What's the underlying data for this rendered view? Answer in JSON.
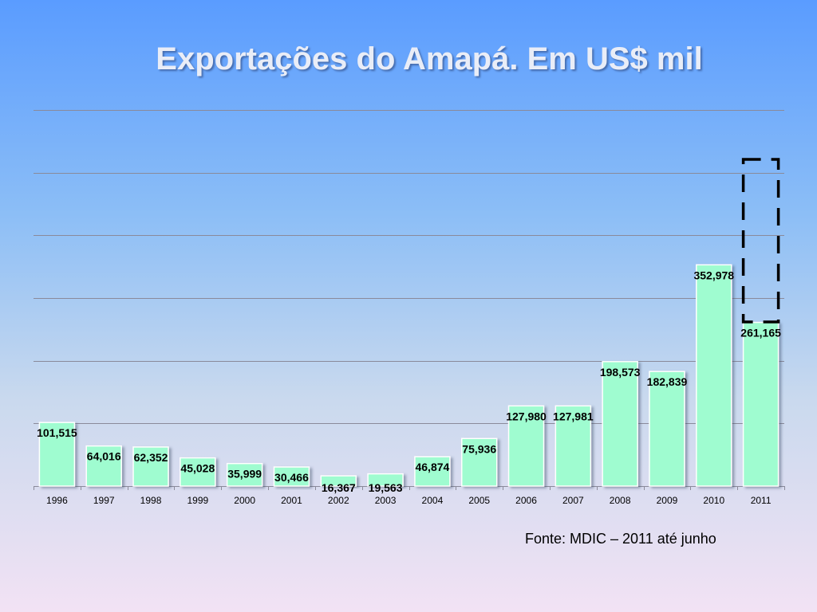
{
  "title": "Exportações do Amapá. Em US$ mil",
  "source_note": "Fonte: MDIC – 2011 até junho",
  "colors": {
    "bar_fill": "#9ffcd0",
    "bar_border": "#ffffff",
    "grid": "#8a8a9a",
    "label": "#000000",
    "highlight_box": "#000000"
  },
  "chart_data": {
    "type": "bar",
    "categories": [
      "1996",
      "1997",
      "1998",
      "1999",
      "2000",
      "2001",
      "2002",
      "2003",
      "2004",
      "2005",
      "2006",
      "2007",
      "2008",
      "2009",
      "2010",
      "2011"
    ],
    "values": [
      101515,
      64016,
      62352,
      45028,
      35999,
      30466,
      16367,
      19563,
      46874,
      75936,
      127980,
      127981,
      198573,
      182839,
      352978,
      261165
    ],
    "value_labels": [
      "101,515",
      "64,016",
      "62,352",
      "45,028",
      "35,999",
      "30,466",
      "16,367",
      "19,563",
      "46,874",
      "75,936",
      "127,980",
      "127,981",
      "198,573",
      "182,839",
      "352,978",
      "261,165"
    ],
    "ylim": [
      0,
      600000
    ],
    "y_gridlines": [
      0,
      100000,
      200000,
      300000,
      400000,
      500000,
      600000
    ],
    "grid": true,
    "highlight": {
      "category": "2011",
      "style": "dashed-box"
    },
    "title": "",
    "xlabel": "",
    "ylabel": ""
  }
}
